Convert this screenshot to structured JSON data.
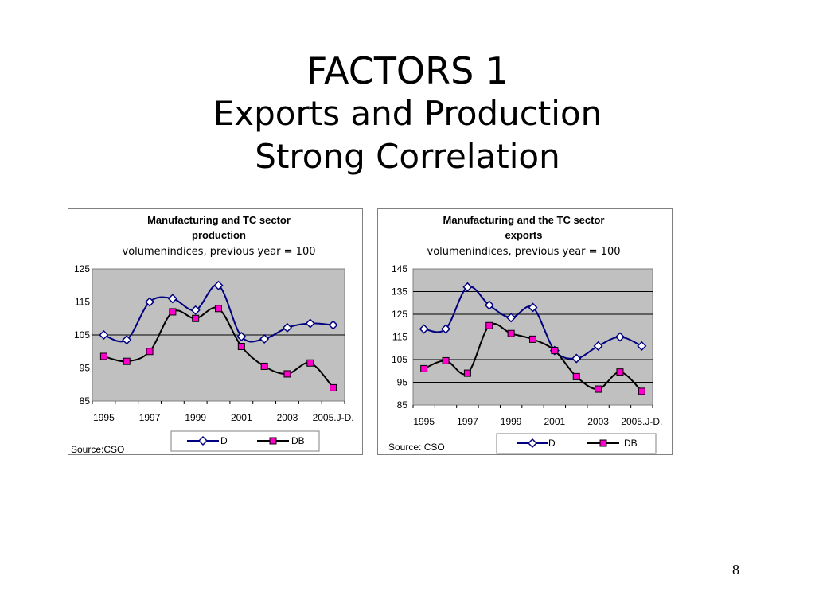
{
  "slide": {
    "title": "FACTORS 1",
    "subtitle_line1": "Exports and Production",
    "subtitle_line2": "Strong Correlation",
    "page_number": "8"
  },
  "colors": {
    "series_d": "#000080",
    "series_db_line": "#000000",
    "series_db_marker": "#ff00cc",
    "plot_bg": "#c0c0c0"
  },
  "chart_data": [
    {
      "type": "line",
      "title_line1": "Manufacturing and TC sector",
      "title_line2": "production",
      "subtitle": "volumenindices, previous year = 100",
      "source": "Source:CSO",
      "xticks": [
        "1995",
        "1997",
        "1999",
        "2001",
        "2003",
        "2005.J-D."
      ],
      "yticks": [
        125,
        115,
        105,
        95,
        85
      ],
      "ylim": [
        85,
        125
      ],
      "grid": true,
      "legend": "bottom",
      "points_count": 11,
      "series": [
        {
          "name": "D",
          "marker": "diamond",
          "values": [
            105,
            103.5,
            115,
            116,
            112.5,
            120,
            104.5,
            103.8,
            107.2,
            108.5,
            108
          ]
        },
        {
          "name": "DB",
          "marker": "square",
          "values": [
            98.5,
            97,
            100,
            112,
            110,
            113,
            101.5,
            95.5,
            93.2,
            96.5,
            89
          ]
        }
      ]
    },
    {
      "type": "line",
      "title_line1": "Manufacturing and the TC sector",
      "title_line2": "exports",
      "subtitle": "volumenindices, previous year = 100",
      "source": "Source: CSO",
      "xticks": [
        "1995",
        "1997",
        "1999",
        "2001",
        "2003",
        "2005.J-D."
      ],
      "yticks": [
        145,
        135,
        125,
        115,
        105,
        95,
        85
      ],
      "ylim": [
        85,
        145
      ],
      "grid": true,
      "legend": "bottom",
      "points_count": 11,
      "series": [
        {
          "name": "D",
          "marker": "diamond",
          "values": [
            118.5,
            118.5,
            137,
            129,
            123.5,
            128,
            109,
            105.5,
            111,
            115,
            111
          ]
        },
        {
          "name": "DB",
          "marker": "square",
          "values": [
            101,
            104.5,
            99,
            120,
            116.5,
            114,
            109,
            97.5,
            92,
            99.5,
            91
          ]
        }
      ]
    }
  ]
}
